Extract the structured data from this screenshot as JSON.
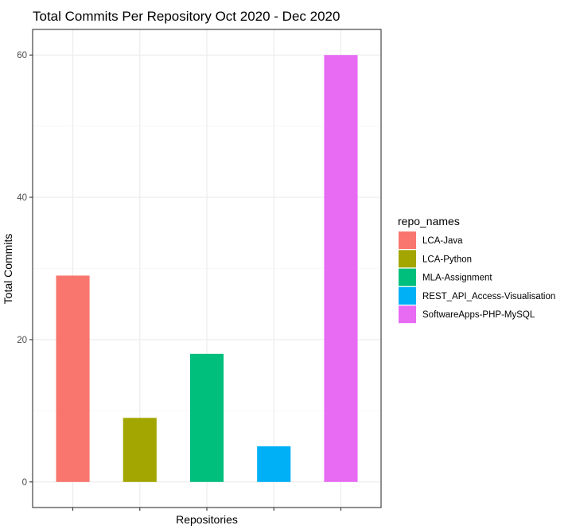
{
  "chart_data": {
    "type": "bar",
    "title": "Total Commits Per Repository Oct 2020 - Dec 2020",
    "xlabel": "Repositories",
    "ylabel": "Total Commits",
    "ylim": [
      -3.6,
      63.6
    ],
    "yticks": [
      0,
      20,
      40,
      60
    ],
    "grid": true,
    "legend": {
      "title": "repo_names",
      "placement": "right"
    },
    "categories": [
      "LCA-Java",
      "LCA-Python",
      "MLA-Assignment",
      "REST_API_Access-Visualisation",
      "SoftwareApps-PHP-MySQL"
    ],
    "values": [
      29,
      9,
      18,
      5,
      60
    ],
    "colors": [
      "#F8766D",
      "#A3A500",
      "#00BF7D",
      "#00B0F6",
      "#E76BF3"
    ]
  }
}
